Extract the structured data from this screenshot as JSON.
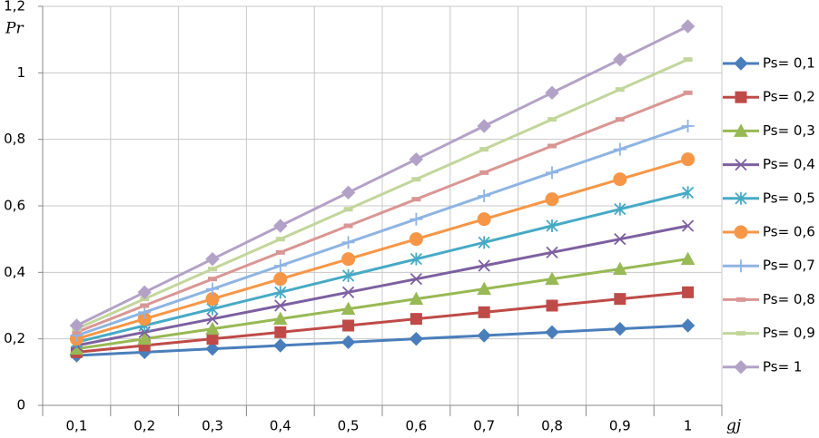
{
  "chart_data": {
    "type": "line",
    "y_label": "Pr",
    "x_label": "gj",
    "categories": [
      "0,1",
      "0,2",
      "0,3",
      "0,4",
      "0,5",
      "0,6",
      "0,7",
      "0,8",
      "0,9",
      "1"
    ],
    "ylim": [
      0,
      1.2
    ],
    "yticks": [
      0,
      {
        "value": 0.2,
        "label": "0,2"
      },
      {
        "value": 0.4,
        "label": "0,4"
      },
      {
        "value": 0.6,
        "label": "0,6"
      },
      {
        "value": 0.8,
        "label": "0,8"
      },
      1,
      {
        "value": 1.2,
        "label": "1,2"
      }
    ],
    "grid": true,
    "legend": "right",
    "series": [
      {
        "name": "Ps= 0,1",
        "color": "#4a7ebb",
        "marker": "diamond",
        "values": [
          0.15,
          0.16,
          0.17,
          0.18,
          0.19,
          0.2,
          0.21,
          0.22,
          0.23,
          0.24
        ]
      },
      {
        "name": "Ps= 0,2",
        "color": "#be4b48",
        "marker": "square",
        "values": [
          0.16,
          0.18,
          0.2,
          0.22,
          0.24,
          0.26,
          0.28,
          0.3,
          0.32,
          0.34
        ]
      },
      {
        "name": "Ps= 0,3",
        "color": "#98b954",
        "marker": "triangle",
        "values": [
          0.17,
          0.2,
          0.23,
          0.26,
          0.29,
          0.32,
          0.35,
          0.38,
          0.41,
          0.44
        ]
      },
      {
        "name": "Ps= 0,4",
        "color": "#7d60a0",
        "marker": "x",
        "values": [
          0.18,
          0.22,
          0.26,
          0.3,
          0.34,
          0.38,
          0.42,
          0.46,
          0.5,
          0.54
        ]
      },
      {
        "name": "Ps= 0,5",
        "color": "#46aac5",
        "marker": "star",
        "values": [
          0.19,
          0.24,
          0.29,
          0.34,
          0.39,
          0.44,
          0.49,
          0.54,
          0.59,
          0.64
        ]
      },
      {
        "name": "Ps= 0,6",
        "color": "#f79646",
        "marker": "circle",
        "values": [
          0.2,
          0.26,
          0.32,
          0.38,
          0.44,
          0.5,
          0.56,
          0.62,
          0.68,
          0.74
        ]
      },
      {
        "name": "Ps= 0,7",
        "color": "#8eb4e3",
        "marker": "plus",
        "values": [
          0.21,
          0.28,
          0.35,
          0.42,
          0.49,
          0.56,
          0.63,
          0.7,
          0.77,
          0.84
        ]
      },
      {
        "name": "Ps= 0,8",
        "color": "#d99694",
        "marker": "dash",
        "values": [
          0.22,
          0.3,
          0.38,
          0.46,
          0.54,
          0.62,
          0.7,
          0.78,
          0.86,
          0.94
        ]
      },
      {
        "name": "Ps= 0,9",
        "color": "#c3d69b",
        "marker": "dash",
        "values": [
          0.23,
          0.32,
          0.41,
          0.5,
          0.59,
          0.68,
          0.77,
          0.86,
          0.95,
          1.04
        ]
      },
      {
        "name": "Ps= 1",
        "color": "#b3a2c7",
        "marker": "diamond",
        "values": [
          0.24,
          0.34,
          0.44,
          0.54,
          0.64,
          0.74,
          0.84,
          0.94,
          1.04,
          1.14
        ]
      }
    ]
  }
}
